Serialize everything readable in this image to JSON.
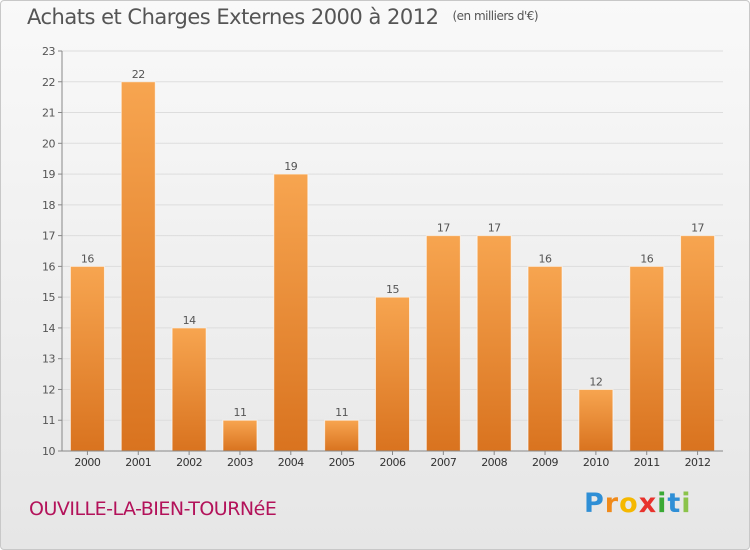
{
  "header": {
    "title": "Achats et Charges Externes 2000 à 2012",
    "unit": "(en milliers d'€)"
  },
  "footer": {
    "commune": "OUVILLE-LA-BIEN-TOURNéE",
    "brand_letters": [
      {
        "ch": "P",
        "color": "#2f8fd6"
      },
      {
        "ch": "r",
        "color": "#f08a1a"
      },
      {
        "ch": "o",
        "color": "#f5b800"
      },
      {
        "ch": "x",
        "color": "#e8322c"
      },
      {
        "ch": "i",
        "color": "#3aa935"
      },
      {
        "ch": "t",
        "color": "#2f8fd6"
      },
      {
        "ch": "i",
        "color": "#8bc34a"
      }
    ]
  },
  "colors": {
    "bar_light": "#f7a550",
    "bar_dark": "#d9731f",
    "axis": "#888888",
    "grid": "#dddddd",
    "text": "#555555",
    "commune": "#b3125a"
  },
  "chart_data": {
    "type": "bar",
    "categories": [
      "2000",
      "2001",
      "2002",
      "2003",
      "2004",
      "2005",
      "2006",
      "2007",
      "2008",
      "2009",
      "2010",
      "2011",
      "2012"
    ],
    "values": [
      16,
      22,
      14,
      11,
      19,
      11,
      15,
      17,
      17,
      16,
      12,
      16,
      17
    ],
    "title": "Achats et Charges Externes 2000 à 2012",
    "xlabel": "",
    "ylabel": "",
    "ylim": [
      10,
      23
    ],
    "yticks": [
      10,
      11,
      12,
      13,
      14,
      15,
      16,
      17,
      18,
      19,
      20,
      21,
      22,
      23
    ],
    "grid": true,
    "data_labels": true
  }
}
